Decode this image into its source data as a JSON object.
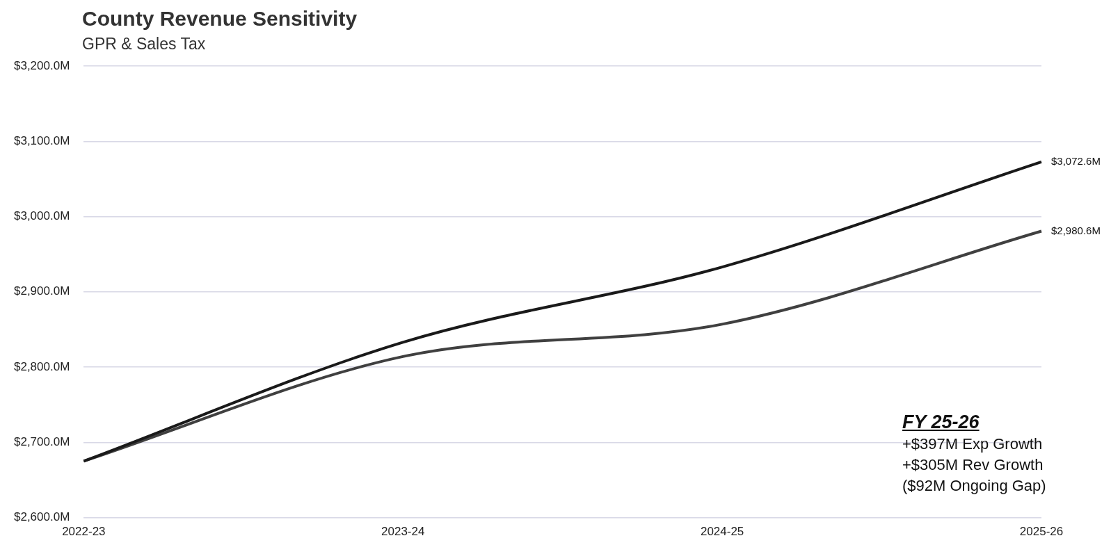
{
  "chart_data": {
    "type": "line",
    "title": "County Revenue Sensitivity",
    "subtitle": "GPR & Sales Tax",
    "categories": [
      "2022-23",
      "2023-24",
      "2024-25",
      "2025-26"
    ],
    "series": [
      {
        "color": "#1a1a1a",
        "values": [
          2675,
          2833,
          2933,
          3072.6
        ],
        "value_labels": [
          null,
          null,
          null,
          "$3,072.6M"
        ]
      },
      {
        "color": "#404040",
        "values": [
          2675,
          2814,
          2857,
          2980.6
        ],
        "value_labels": [
          null,
          null,
          null,
          "$2,980.6M"
        ]
      }
    ],
    "ylim": [
      2600,
      3200
    ],
    "yticks": [
      {
        "value": 2600,
        "label": "$2,600.0M"
      },
      {
        "value": 2700,
        "label": "$2,700.0M"
      },
      {
        "value": 2800,
        "label": "$2,800.0M"
      },
      {
        "value": 2900,
        "label": "$2,900.0M"
      },
      {
        "value": 3000,
        "label": "$3,000.0M"
      },
      {
        "value": 3100,
        "label": "$3,100.0M"
      },
      {
        "value": 3200,
        "label": "$3,200.0M"
      }
    ],
    "grid": "y",
    "legend": false,
    "marker": "none",
    "line_style": "solid",
    "annotations": [
      "FY 25-26",
      "+$397M Exp Growth",
      "+$305M Rev Growth",
      "($92M Ongoing Gap)"
    ]
  }
}
